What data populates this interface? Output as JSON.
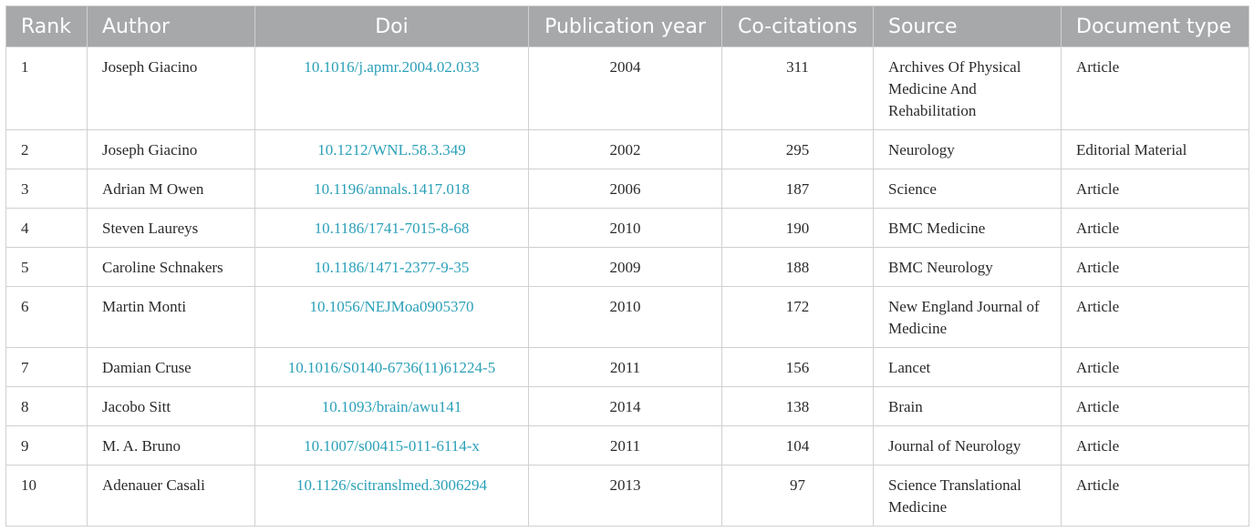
{
  "table": {
    "headers": [
      "Rank",
      "Author",
      "Doi",
      "Publication year",
      "Co-citations",
      "Source",
      "Document type"
    ],
    "rows": [
      {
        "rank": "1",
        "author": "Joseph Giacino",
        "doi": "10.1016/j.apmr.2004.02.033",
        "year": "2004",
        "cocitations": "311",
        "source": "Archives Of Physical Medicine And Rehabilitation",
        "doctype": "Article"
      },
      {
        "rank": "2",
        "author": "Joseph Giacino",
        "doi": "10.1212/WNL.58.3.349",
        "year": "2002",
        "cocitations": "295",
        "source": "Neurology",
        "doctype": "Editorial Material"
      },
      {
        "rank": "3",
        "author": "Adrian M Owen",
        "doi": "10.1196/annals.1417.018",
        "year": "2006",
        "cocitations": "187",
        "source": "Science",
        "doctype": "Article"
      },
      {
        "rank": "4",
        "author": "Steven Laureys",
        "doi": "10.1186/1741-7015-8-68",
        "year": "2010",
        "cocitations": "190",
        "source": "BMC Medicine",
        "doctype": "Article"
      },
      {
        "rank": "5",
        "author": "Caroline Schnakers",
        "doi": "10.1186/1471-2377-9-35",
        "year": "2009",
        "cocitations": "188",
        "source": "BMC Neurology",
        "doctype": "Article"
      },
      {
        "rank": "6",
        "author": "Martin Monti",
        "doi": "10.1056/NEJMoa0905370",
        "year": "2010",
        "cocitations": "172",
        "source": "New England Journal of Medicine",
        "doctype": "Article"
      },
      {
        "rank": "7",
        "author": "Damian Cruse",
        "doi": "10.1016/S0140-6736(11)61224-5",
        "year": "2011",
        "cocitations": "156",
        "source": "Lancet",
        "doctype": "Article"
      },
      {
        "rank": "8",
        "author": "Jacobo Sitt",
        "doi": "10.1093/brain/awu141",
        "year": "2014",
        "cocitations": "138",
        "source": "Brain",
        "doctype": "Article"
      },
      {
        "rank": "9",
        "author": "M. A. Bruno",
        "doi": "10.1007/s00415-011-6114-x",
        "year": "2011",
        "cocitations": "104",
        "source": "Journal of Neurology",
        "doctype": "Article"
      },
      {
        "rank": "10",
        "author": "Adenauer Casali",
        "doi": "10.1126/scitranslmed.3006294",
        "year": "2013",
        "cocitations": "97",
        "source": "Science Translational Medicine",
        "doctype": "Article"
      }
    ]
  },
  "colors": {
    "header_bg": "#a6a8aa",
    "header_text": "#ffffff",
    "link": "#2aa0b8",
    "border": "#cfd0d1"
  }
}
